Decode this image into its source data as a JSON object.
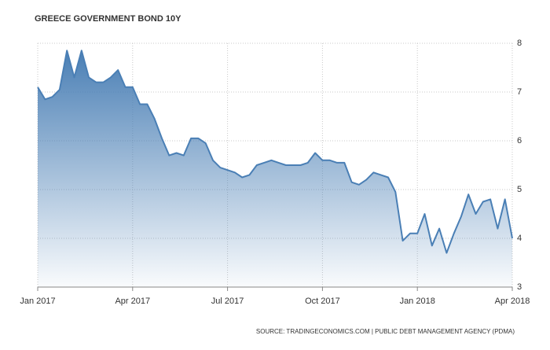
{
  "chart_data": {
    "type": "area",
    "title": "GREECE GOVERNMENT BOND 10Y",
    "source": "SOURCE: TRADINGECONOMICS.COM | PUBLIC DEBT MANAGEMENT AGENCY (PDMA)",
    "categories": [
      "Jan 2017",
      null,
      null,
      null,
      null,
      null,
      null,
      null,
      null,
      null,
      null,
      null,
      null,
      "Apr 2017",
      null,
      null,
      null,
      null,
      null,
      null,
      null,
      null,
      null,
      null,
      null,
      null,
      "Jul 2017",
      null,
      null,
      null,
      null,
      null,
      null,
      null,
      null,
      null,
      null,
      null,
      null,
      "Oct 2017",
      null,
      null,
      null,
      null,
      null,
      null,
      null,
      null,
      null,
      null,
      null,
      null,
      "Jan 2018",
      null,
      null,
      null,
      null,
      null,
      null,
      null,
      null,
      null,
      null,
      null,
      null,
      "Apr 2018"
    ],
    "values": [
      7.1,
      6.85,
      6.9,
      7.05,
      7.85,
      7.3,
      7.85,
      7.3,
      7.2,
      7.2,
      7.3,
      7.45,
      7.1,
      7.1,
      6.75,
      6.75,
      6.45,
      6.05,
      5.7,
      5.75,
      5.7,
      6.05,
      6.05,
      5.95,
      5.6,
      5.45,
      5.4,
      5.35,
      5.25,
      5.3,
      5.5,
      5.55,
      5.6,
      5.55,
      5.5,
      5.5,
      5.5,
      5.55,
      5.75,
      5.6,
      5.6,
      5.55,
      5.55,
      5.15,
      5.1,
      5.2,
      5.35,
      5.3,
      5.25,
      4.95,
      3.95,
      4.1,
      4.1,
      4.5,
      3.85,
      4.2,
      3.7,
      4.1,
      4.45,
      4.9,
      4.5,
      4.75,
      4.8,
      4.2,
      4.8,
      4.0
    ],
    "color": "#4a7fb5",
    "ylim": [
      3,
      8
    ],
    "yticks": [
      3,
      4,
      5,
      6,
      7,
      8
    ],
    "grid": true,
    "y_axis_side": "right"
  }
}
